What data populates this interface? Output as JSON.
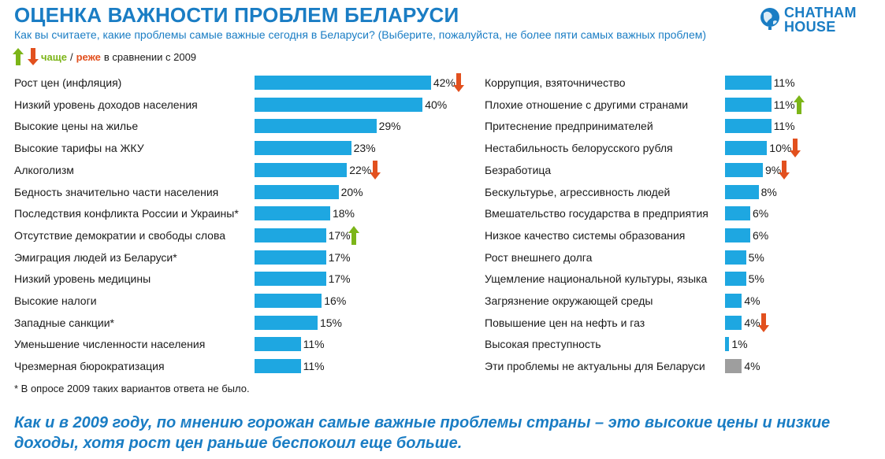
{
  "header": {
    "title": "ОЦЕНКА ВАЖНОСТИ ПРОБЛЕМ БЕЛАРУСИ",
    "subtitle": "Как вы считаете, какие проблемы самые важные сегодня в Беларуси? (Выберите, пожалуйста, не более пяти самых важных проблем)",
    "logo_line1": "CHATHAM",
    "logo_line2": "HOUSE"
  },
  "legend": {
    "more": "чаще",
    "separator": "/",
    "less": "реже",
    "rest": "в сравнении с 2009"
  },
  "colors": {
    "bar": "#1ea7e1",
    "bar_gray": "#9e9e9e",
    "up": "#7cb518",
    "down": "#e2501e",
    "accent": "#1a7dc4"
  },
  "chart_data": [
    {
      "type": "bar",
      "orientation": "horizontal",
      "categories": [
        "Рост цен (инфляция)",
        "Низкий уровень доходов населения",
        "Высокие цены на жилье",
        "Высокие тарифы на ЖКУ",
        "Алкоголизм",
        "Бедность значительно части населения",
        "Последствия конфликта России и Украины*",
        "Отсутствие демократии и свободы слова",
        "Эмиграция людей из Беларуси*",
        "Низкий уровень медицины",
        "Высокие налоги",
        "Западные санкции*",
        "Уменьшение численности населения",
        "Чрезмерная бюрократизация"
      ],
      "values": [
        42,
        40,
        29,
        23,
        22,
        20,
        18,
        17,
        17,
        17,
        16,
        15,
        11,
        11
      ],
      "value_labels": [
        "42%",
        "40%",
        "29%",
        "23%",
        "22%",
        "20%",
        "18%",
        "17%",
        "17%",
        "17%",
        "16%",
        "15%",
        "11%",
        "11%"
      ],
      "change_vs_2009": [
        "down",
        "",
        "",
        "",
        "down",
        "",
        "",
        "up",
        "",
        "",
        "",
        "",
        "",
        ""
      ],
      "gray": [
        false,
        false,
        false,
        false,
        false,
        false,
        false,
        false,
        false,
        false,
        false,
        false,
        false,
        false
      ]
    },
    {
      "type": "bar",
      "orientation": "horizontal",
      "categories": [
        "Коррупция, взяточничество",
        "Плохие отношение с другими странами",
        "Притеснение предпринимателей",
        "Нестабильность белорусского рубля",
        "Безработица",
        "Бескультурье, агрессивность людей",
        "Вмешательство государства в предприятия",
        "Низкое качество системы образования",
        "Рост внешнего долга",
        "Ущемление национальной культуры, языка",
        "Загрязнение окружающей среды",
        "Повышение цен на нефть и газ",
        "Высокая преступность",
        "Эти проблемы не актуальны для Беларуси"
      ],
      "values": [
        11,
        11,
        11,
        10,
        9,
        8,
        6,
        6,
        5,
        5,
        4,
        4,
        1,
        4
      ],
      "value_labels": [
        "11%",
        "11%",
        "11%",
        "10%",
        "9%",
        "8%",
        "6%",
        "6%",
        "5%",
        "5%",
        "4%",
        "4%",
        "1%",
        "4%"
      ],
      "change_vs_2009": [
        "",
        "up",
        "",
        "down",
        "down",
        "",
        "",
        "",
        "",
        "",
        "",
        "down",
        "",
        ""
      ],
      "gray": [
        false,
        false,
        false,
        false,
        false,
        false,
        false,
        false,
        false,
        false,
        false,
        false,
        false,
        true
      ]
    }
  ],
  "footnote": "* В опросе 2009 таких вариантов ответа не было.",
  "conclusion": "Как и в 2009 году, по мнению горожан самые важные проблемы страны – это высокие цены и низкие доходы, хотя рост цен раньше беспокоил еще больше."
}
